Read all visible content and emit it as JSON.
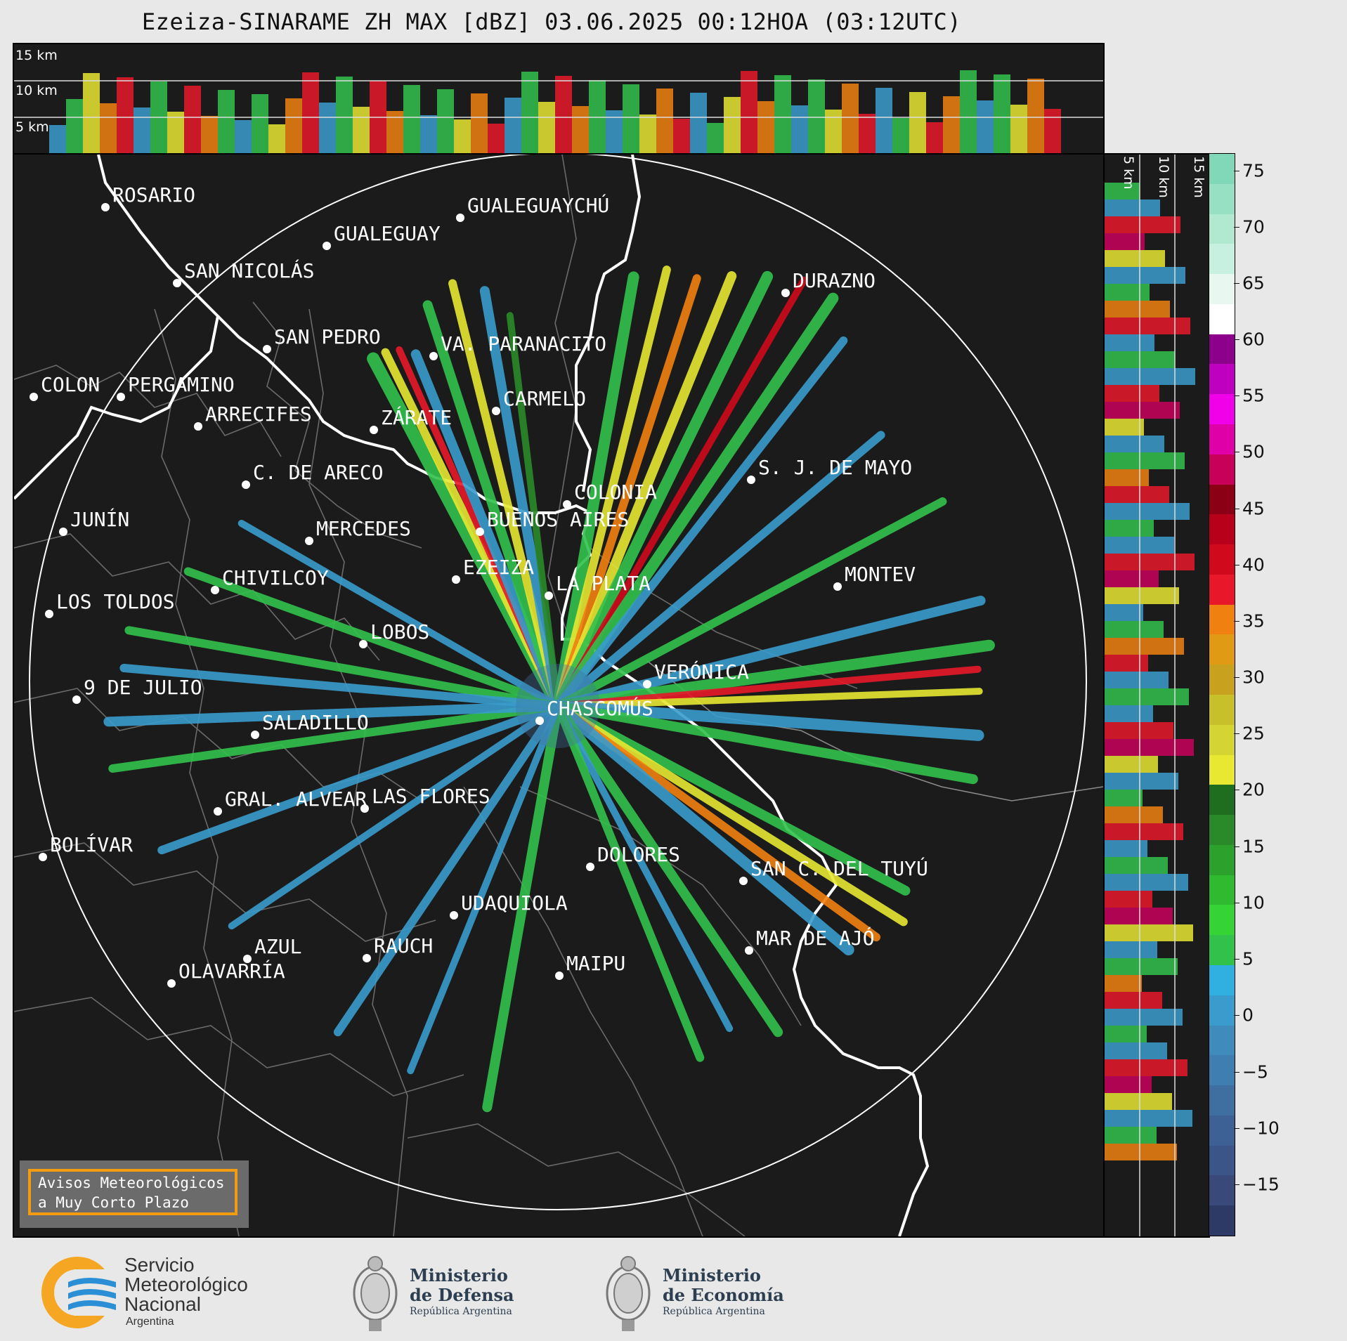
{
  "title": "Ezeiza-SINARAME ZH MAX [dBZ] 03.06.2025 00:12HOA (03:12UTC)",
  "top_panel": {
    "altitude_labels": [
      "15 km",
      "10 km",
      "5 km"
    ]
  },
  "side_panel": {
    "altitude_labels": [
      "5 km",
      "10 km",
      "15 km"
    ]
  },
  "colorbar": {
    "ticks": [
      "75",
      "70",
      "65",
      "60",
      "55",
      "50",
      "45",
      "40",
      "35",
      "30",
      "25",
      "20",
      "15",
      "10",
      "5",
      "0",
      "−5",
      "−10",
      "−15"
    ],
    "colors": [
      "#2e3a66",
      "#38497a",
      "#3b5588",
      "#3d6194",
      "#3f6fa0",
      "#3f7eb0",
      "#3f8cbc",
      "#3a9ccc",
      "#2fb0e0",
      "#32c24c",
      "#36d335",
      "#2fba2f",
      "#2ca22c",
      "#2a8a2a",
      "#1f6e1f",
      "#e8e833",
      "#d4d433",
      "#c8c02a",
      "#c8a21f",
      "#e09a14",
      "#f08010",
      "#e8182a",
      "#d00a1c",
      "#b8001a",
      "#8c0016",
      "#c8005a",
      "#e000a8",
      "#f000e8",
      "#c000c0",
      "#8c008c",
      "#ffffff",
      "#e8f8f0",
      "#c8f0e0",
      "#b0e8d0",
      "#98e0c4",
      "#80d8b8"
    ]
  },
  "cities": [
    {
      "name": "ROSARIO"
    },
    {
      "name": "GUALEGUAYCHÚ"
    },
    {
      "name": "GUALEGUAY"
    },
    {
      "name": "SAN NICOLÁS"
    },
    {
      "name": "DURAZNO"
    },
    {
      "name": "SAN PEDRO"
    },
    {
      "name": "VA. PARANACITO"
    },
    {
      "name": "COLON"
    },
    {
      "name": "PERGAMINO"
    },
    {
      "name": "CARMELO"
    },
    {
      "name": "ARRECIFES"
    },
    {
      "name": "ZÁRATE"
    },
    {
      "name": "S. J. DE MAYO"
    },
    {
      "name": "C. DE ARECO"
    },
    {
      "name": "COLONIA"
    },
    {
      "name": "JUNÍN"
    },
    {
      "name": "MERCEDES"
    },
    {
      "name": "BUENOS AIRES"
    },
    {
      "name": "EZEIZA"
    },
    {
      "name": "MONTEV"
    },
    {
      "name": "CHIVILCOY"
    },
    {
      "name": "LA PLATA"
    },
    {
      "name": "LOS TOLDOS"
    },
    {
      "name": "LOBOS"
    },
    {
      "name": "VERÓNICA"
    },
    {
      "name": "9 DE JULIO"
    },
    {
      "name": "CHASCOMÚS"
    },
    {
      "name": "SALADILLO"
    },
    {
      "name": "GRAL. ALVEAR"
    },
    {
      "name": "LAS FLORES"
    },
    {
      "name": "BOLÍVAR"
    },
    {
      "name": "DOLORES"
    },
    {
      "name": "SAN C. DEL TUYÚ"
    },
    {
      "name": "UDAQUIOLA"
    },
    {
      "name": "AZUL"
    },
    {
      "name": "RAUCH"
    },
    {
      "name": "MAR DE AJÓ"
    },
    {
      "name": "OLAVARRÍA"
    },
    {
      "name": "MAIPU"
    }
  ],
  "notice": {
    "line1": "Avisos Meteorológicos",
    "line2": "a Muy Corto Plazo"
  },
  "footer": {
    "smn": {
      "line1": "Servicio",
      "line2": "Meteorológico",
      "line3": "Nacional",
      "line4": "Argentina"
    },
    "defensa": {
      "line1": "Ministerio",
      "line2": "de Defensa",
      "line3": "República Argentina"
    },
    "economia": {
      "line1": "Ministerio",
      "line2": "de Economía",
      "line3": "República Argentina"
    }
  }
}
